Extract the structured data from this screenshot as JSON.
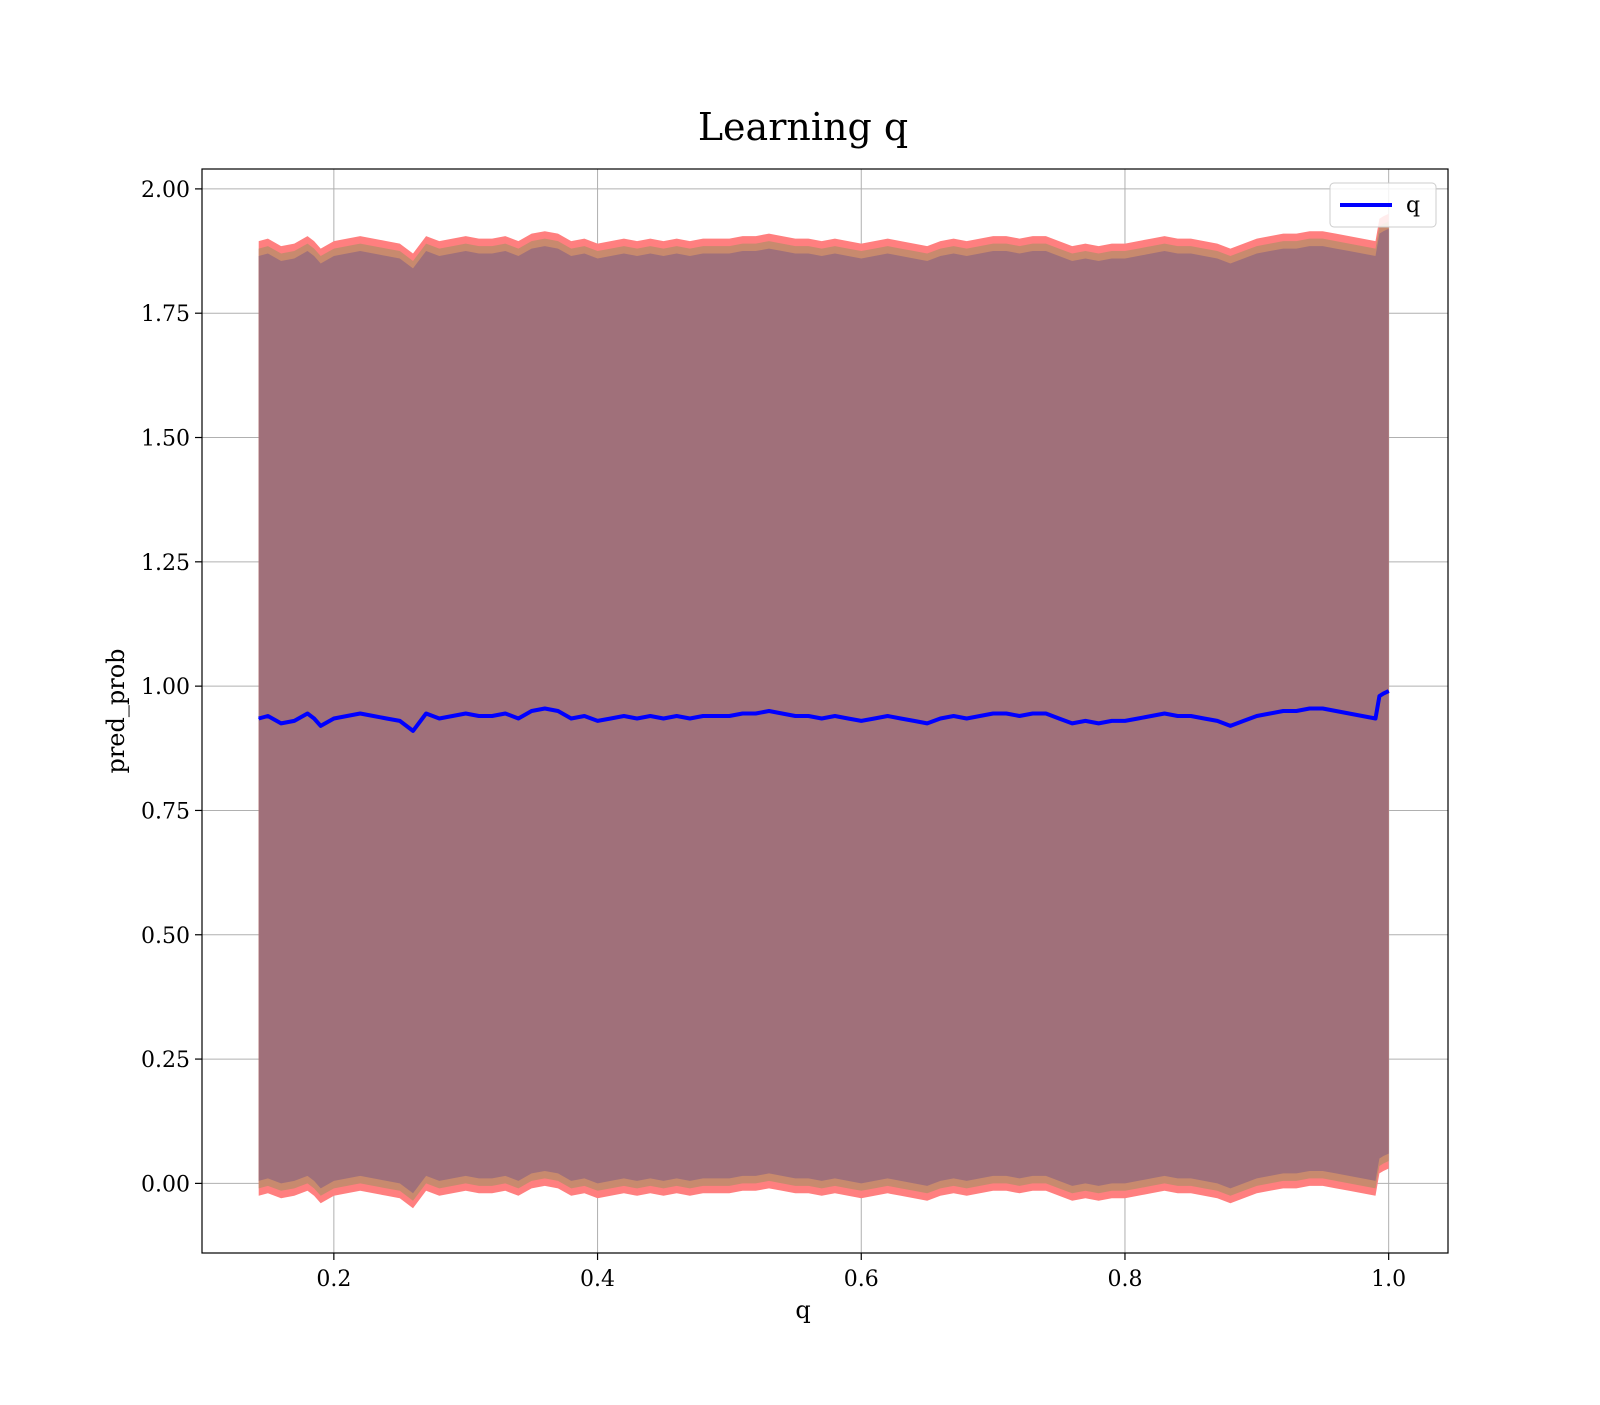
{
  "colors": {
    "line": "#0000ff",
    "band_outer": "#ff7f7f",
    "band_middle": "#c88a6e",
    "band_inner": "#a0707a",
    "grid": "#b0b0b0"
  },
  "chart_data": {
    "type": "line",
    "title": "Learning q",
    "xlabel": "q",
    "ylabel": "pred_prob",
    "xlim": [
      0.1,
      1.045
    ],
    "ylim": [
      -0.14,
      2.04
    ],
    "xticks": [
      0.2,
      0.4,
      0.6,
      0.8,
      1.0
    ],
    "xtick_labels": [
      "0.2",
      "0.4",
      "0.6",
      "0.8",
      "1.0"
    ],
    "yticks": [
      0.0,
      0.25,
      0.5,
      0.75,
      1.0,
      1.25,
      1.5,
      1.75,
      2.0
    ],
    "ytick_labels": [
      "0.00",
      "0.25",
      "0.50",
      "0.75",
      "1.00",
      "1.25",
      "1.50",
      "1.75",
      "2.00"
    ],
    "grid": true,
    "legend": {
      "position": "top-right",
      "entries": [
        "q"
      ]
    },
    "series": [
      {
        "name": "q",
        "x": [
          0.143,
          0.15,
          0.16,
          0.17,
          0.18,
          0.185,
          0.19,
          0.2,
          0.21,
          0.22,
          0.23,
          0.24,
          0.25,
          0.26,
          0.27,
          0.28,
          0.29,
          0.3,
          0.31,
          0.32,
          0.33,
          0.34,
          0.35,
          0.36,
          0.37,
          0.38,
          0.39,
          0.4,
          0.41,
          0.42,
          0.43,
          0.44,
          0.45,
          0.46,
          0.47,
          0.48,
          0.49,
          0.5,
          0.51,
          0.52,
          0.53,
          0.54,
          0.55,
          0.56,
          0.57,
          0.58,
          0.59,
          0.6,
          0.61,
          0.62,
          0.63,
          0.64,
          0.65,
          0.66,
          0.67,
          0.68,
          0.69,
          0.7,
          0.71,
          0.72,
          0.73,
          0.74,
          0.75,
          0.76,
          0.77,
          0.78,
          0.79,
          0.8,
          0.81,
          0.82,
          0.83,
          0.84,
          0.85,
          0.86,
          0.87,
          0.88,
          0.89,
          0.9,
          0.91,
          0.92,
          0.93,
          0.94,
          0.95,
          0.96,
          0.97,
          0.98,
          0.99,
          0.993,
          0.996,
          1.0
        ],
        "y": [
          0.935,
          0.94,
          0.925,
          0.93,
          0.945,
          0.935,
          0.92,
          0.935,
          0.94,
          0.945,
          0.94,
          0.935,
          0.93,
          0.91,
          0.945,
          0.935,
          0.94,
          0.945,
          0.94,
          0.94,
          0.945,
          0.935,
          0.95,
          0.955,
          0.95,
          0.935,
          0.94,
          0.93,
          0.935,
          0.94,
          0.935,
          0.94,
          0.935,
          0.94,
          0.935,
          0.94,
          0.94,
          0.94,
          0.945,
          0.945,
          0.95,
          0.945,
          0.94,
          0.94,
          0.935,
          0.94,
          0.935,
          0.93,
          0.935,
          0.94,
          0.935,
          0.93,
          0.925,
          0.935,
          0.94,
          0.935,
          0.94,
          0.945,
          0.945,
          0.94,
          0.945,
          0.945,
          0.935,
          0.925,
          0.93,
          0.925,
          0.93,
          0.93,
          0.935,
          0.94,
          0.945,
          0.94,
          0.94,
          0.935,
          0.93,
          0.92,
          0.93,
          0.94,
          0.945,
          0.95,
          0.95,
          0.955,
          0.955,
          0.95,
          0.945,
          0.94,
          0.935,
          0.98,
          0.985,
          0.99
        ]
      }
    ],
    "band": {
      "lower_inner": [
        0.005,
        0.01,
        0.0,
        0.005,
        0.015,
        0.005,
        -0.01,
        0.005,
        0.01,
        0.015,
        0.01,
        0.005,
        0.0,
        -0.02,
        0.015,
        0.005,
        0.01,
        0.015,
        0.01,
        0.01,
        0.015,
        0.005,
        0.02,
        0.025,
        0.02,
        0.005,
        0.01,
        0.0,
        0.005,
        0.01,
        0.005,
        0.01,
        0.005,
        0.01,
        0.005,
        0.01,
        0.01,
        0.01,
        0.015,
        0.015,
        0.02,
        0.015,
        0.01,
        0.01,
        0.005,
        0.01,
        0.005,
        0.0,
        0.005,
        0.01,
        0.005,
        0.0,
        -0.005,
        0.005,
        0.01,
        0.005,
        0.01,
        0.015,
        0.015,
        0.01,
        0.015,
        0.015,
        0.005,
        -0.005,
        0.0,
        -0.005,
        0.0,
        0.0,
        0.005,
        0.01,
        0.015,
        0.01,
        0.01,
        0.005,
        0.0,
        -0.01,
        0.0,
        0.01,
        0.015,
        0.02,
        0.02,
        0.025,
        0.025,
        0.02,
        0.015,
        0.01,
        0.005,
        0.05,
        0.055,
        0.06
      ],
      "upper_inner": [
        1.865,
        1.87,
        1.855,
        1.86,
        1.875,
        1.865,
        1.85,
        1.865,
        1.87,
        1.875,
        1.87,
        1.865,
        1.86,
        1.84,
        1.875,
        1.865,
        1.87,
        1.875,
        1.87,
        1.87,
        1.875,
        1.865,
        1.88,
        1.885,
        1.88,
        1.865,
        1.87,
        1.86,
        1.865,
        1.87,
        1.865,
        1.87,
        1.865,
        1.87,
        1.865,
        1.87,
        1.87,
        1.87,
        1.875,
        1.875,
        1.88,
        1.875,
        1.87,
        1.87,
        1.865,
        1.87,
        1.865,
        1.86,
        1.865,
        1.87,
        1.865,
        1.86,
        1.855,
        1.865,
        1.87,
        1.865,
        1.87,
        1.875,
        1.875,
        1.87,
        1.875,
        1.875,
        1.865,
        1.855,
        1.86,
        1.855,
        1.86,
        1.86,
        1.865,
        1.87,
        1.875,
        1.87,
        1.87,
        1.865,
        1.86,
        1.85,
        1.86,
        1.87,
        1.875,
        1.88,
        1.88,
        1.885,
        1.885,
        1.88,
        1.875,
        1.87,
        1.865,
        1.91,
        1.915,
        1.92
      ],
      "outer_offset": 0.03
    }
  }
}
